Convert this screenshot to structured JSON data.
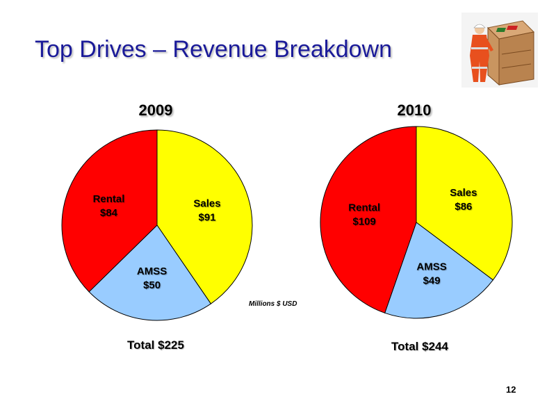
{
  "slide": {
    "title": "Top Drives – Revenue Breakdown",
    "page_number": "12"
  },
  "colors": {
    "sales": "#ffff00",
    "amss": "#99ccff",
    "rental": "#ff0000"
  },
  "chart_data": [
    {
      "type": "pie",
      "title": "2009",
      "unit_note": "Millions $ USD",
      "total_label": "Total $225",
      "slices": [
        {
          "name": "Sales",
          "value": 91,
          "value_label": "$91",
          "color": "#ffff00"
        },
        {
          "name": "AMSS",
          "value": 50,
          "value_label": "$50",
          "color": "#99ccff"
        },
        {
          "name": "Rental",
          "value": 84,
          "value_label": "$84",
          "color": "#ff0000"
        }
      ]
    },
    {
      "type": "pie",
      "title": "2010",
      "total_label": "Total $244",
      "slices": [
        {
          "name": "Sales",
          "value": 86,
          "value_label": "$86",
          "color": "#ffff00"
        },
        {
          "name": "AMSS",
          "value": 49,
          "value_label": "$49",
          "color": "#99ccff"
        },
        {
          "name": "Rental",
          "value": 109,
          "value_label": "$109",
          "color": "#ff0000"
        }
      ]
    }
  ]
}
